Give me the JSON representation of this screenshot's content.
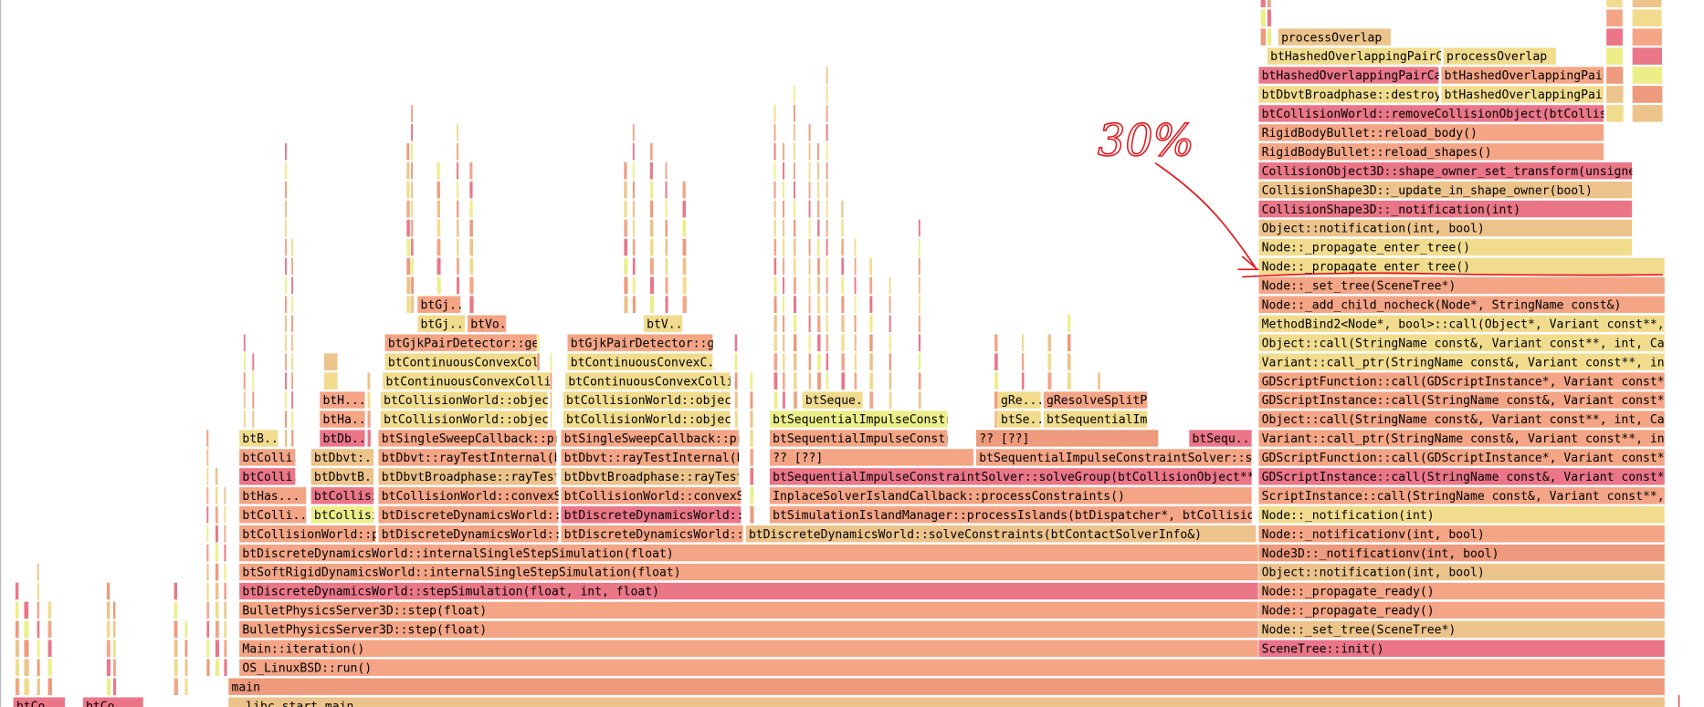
{
  "annotation": "30%",
  "frames": [
    "__libc_start_main",
    "btCo",
    "btCo",
    "main",
    "OS_LinuxBSD::run()",
    "Main::iteration()",
    "SceneTree::init()",
    "BulletPhysicsServer3D::step(float)",
    "Node::_set_tree(SceneTree*)",
    "BulletPhysicsServer3D::step(float)",
    "Node::_propagate_ready()",
    "btDiscreteDynamicsWorld::stepSimulation(float, int, float)",
    "Node::_propagate_ready()",
    "btSoftRigidDynamicsWorld::internalSingleStepSimulation(float)",
    "Object::notification(int, bool)",
    "btDiscreteDynamicsWorld::internalSingleStepSimulation(float)",
    "Node3D::_notificationv(int, bool)",
    "btCollisionWorld::pe",
    "btDiscreteDynamicsWorld::ci",
    "btDiscreteDynamicsWorld::ir",
    "btDiscreteDynamicsWorld::solveConstraints(btContactSolverInfo&)",
    "Node::_notificationv(int, bool)",
    "btColli...",
    "btCollisi",
    "btDiscreteDynamicsWorld::ci",
    "btDiscreteDynamicsWorld::ir",
    "btSimulationIslandManager::processIslands(btDispatcher*, btCollisionWorl",
    "Node::_notification(int)",
    "btHas...",
    "btCollisi",
    "btCollisionWorld::convexSwe",
    "btCollisionWorld::convexSwe",
    "InplaceSolverIslandCallback::processConstraints()",
    "ScriptInstance::call(StringName const&, Variant const**, int, Varia",
    "btColli...",
    "btDbvtB...",
    "btDbvtBroadphase::rayTest(b",
    "btDbvtBroadphase::rayTest(b",
    "btSequentialImpulseConstraintSolver::solveGroup(btCollisionObject**, int",
    "GDScriptInstance::call(StringName const&, Variant const**, ir",
    "btColli...",
    "btDbvt:...",
    "btDbvt::rayTestInternal(btD",
    "btDbvt::rayTestInternal(btD",
    "?? [??]",
    "btSequentialImpulseConstraintSolver::solv",
    "GDScriptFunction::call(GDScriptInstance*, Variant const**, ir",
    "btB...",
    "btDb...",
    "btSingleSweepCallback::prc",
    "btSingleSweepCallback::prc",
    "btSequentialImpulseConstra",
    "?? [??]",
    "btSequ...",
    "Variant::call_ptr(StringName const&, Variant const**, int, Va",
    "btHa...",
    "btCollisionWorld::object",
    "btCollisionWorld::object",
    "btSequentialImpulseConstra",
    "btSe...",
    "btSequentialIm...",
    "Object::call(StringName const&, Variant const**, int, Callab",
    "btH...",
    "btCollisionWorld::object",
    "btCollisionWorld::object",
    "btSeque...",
    "gRe...",
    "gResolveSplitP...",
    "GDScriptInstance::call(StringName const&, Variant const**, ir",
    "btContinuousConvexCollis",
    "btContinuousConvexCollis",
    "GDScriptFunction::call(GDScriptInstance*, Variant const**, ir",
    "btContinuousConvexCol...",
    "btContinuousConvexC...",
    "Variant::call_ptr(StringName const&, Variant const**, int, Va",
    "btGjkPairDetector::ge",
    "btGjkPairDetector::ge",
    "Object::call(StringName const&, Variant const**, int, Callab",
    "btGj...",
    "btVo...",
    "btV...",
    "MethodBind2<Node*, bool>::call(Object*, Variant const**, int",
    "btGj...",
    "Node::_add_child_nocheck(Node*, StringName const&)",
    "Node::_set_tree(SceneTree*)",
    "Node::_propagate_enter_tree()",
    "Node::_propagate_enter_tree()",
    "Object::notification(int, bool)",
    "CollisionShape3D::_notification(int)",
    "CollisionShape3D::_update_in_shape_owner(bool)",
    "CollisionObject3D::shape_owner_set_transform(unsigned ir",
    "RigidBodyBullet::reload_shapes()",
    "RigidBodyBullet::reload_body()",
    "btCollisionWorld::removeCollisionObject(btCollisionO",
    "btDbvtBroadphase::destroyP...",
    "btHashedOverlappingPair...",
    "btHashedOverlappingPairCac...",
    "btHashedOverlappingPair",
    "btHashedOverlappingPairC...",
    "processOverlap",
    "processOverlap"
  ]
}
